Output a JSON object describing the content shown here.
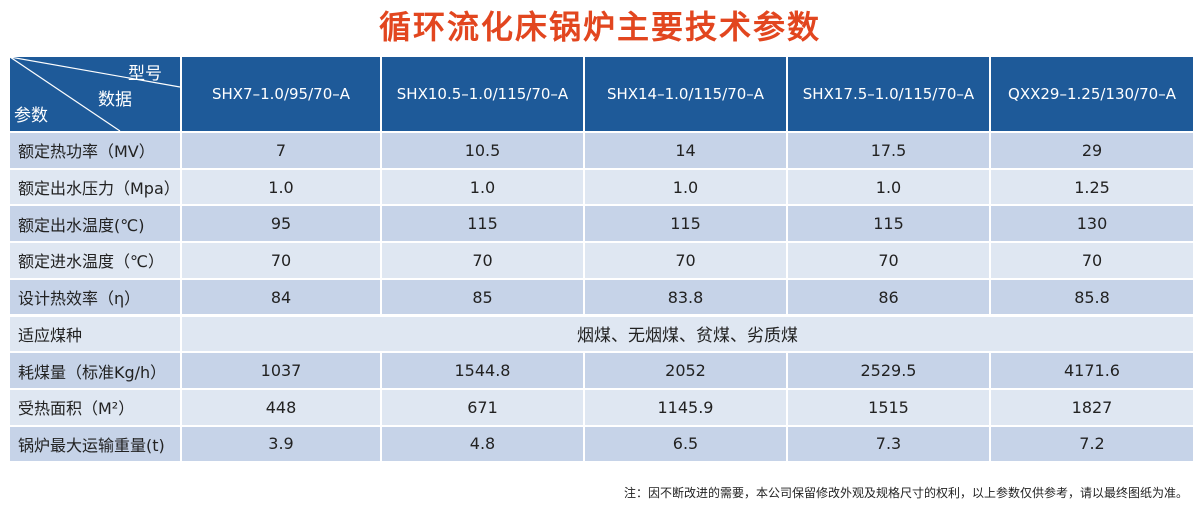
{
  "header": {
    "title": "循环流化床锅炉主要技术参数"
  },
  "table": {
    "corner": {
      "model": "型号",
      "data": "数据",
      "param": "参数"
    },
    "columns": [
      "SHX7–1.0/95/70–A",
      "SHX10.5–1.0/115/70–A",
      "SHX14–1.0/115/70–A",
      "SHX17.5–1.0/115/70–A",
      "QXX29–1.25/130/70–A"
    ],
    "rows": [
      {
        "label": "额定热功率（MV）",
        "values": [
          "7",
          "10.5",
          "14",
          "17.5",
          "29"
        ]
      },
      {
        "label": "额定出水压力（Mpa）",
        "values": [
          "1.0",
          "1.0",
          "1.0",
          "1.0",
          "1.25"
        ]
      },
      {
        "label": "额定出水温度(℃)",
        "values": [
          "95",
          "115",
          "115",
          "115",
          "130"
        ]
      },
      {
        "label": "额定进水温度（℃）",
        "values": [
          "70",
          "70",
          "70",
          "70",
          "70"
        ]
      },
      {
        "label": "设计热效率（η）",
        "values": [
          "84",
          "85",
          "83.8",
          "86",
          "85.8"
        ]
      },
      {
        "label": "适应煤种",
        "value": "烟煤、无烟煤、贫煤、劣质煤"
      },
      {
        "label": "耗煤量（标准Kg/h）",
        "values": [
          "1037",
          "1544.8",
          "2052",
          "2529.5",
          "4171.6"
        ]
      },
      {
        "label": "受热面积（M²）",
        "values": [
          "448",
          "671",
          "1145.9",
          "1515",
          "1827"
        ]
      },
      {
        "label": "锅炉最大运输重量(t)",
        "values": [
          "3.9",
          "4.8",
          "6.5",
          "7.3",
          "7.2"
        ]
      }
    ]
  },
  "note": "注：因不断改进的需要，本公司保留修改外观及规格尺寸的权利，以上参数仅供参考，请以最终图纸为准。"
}
